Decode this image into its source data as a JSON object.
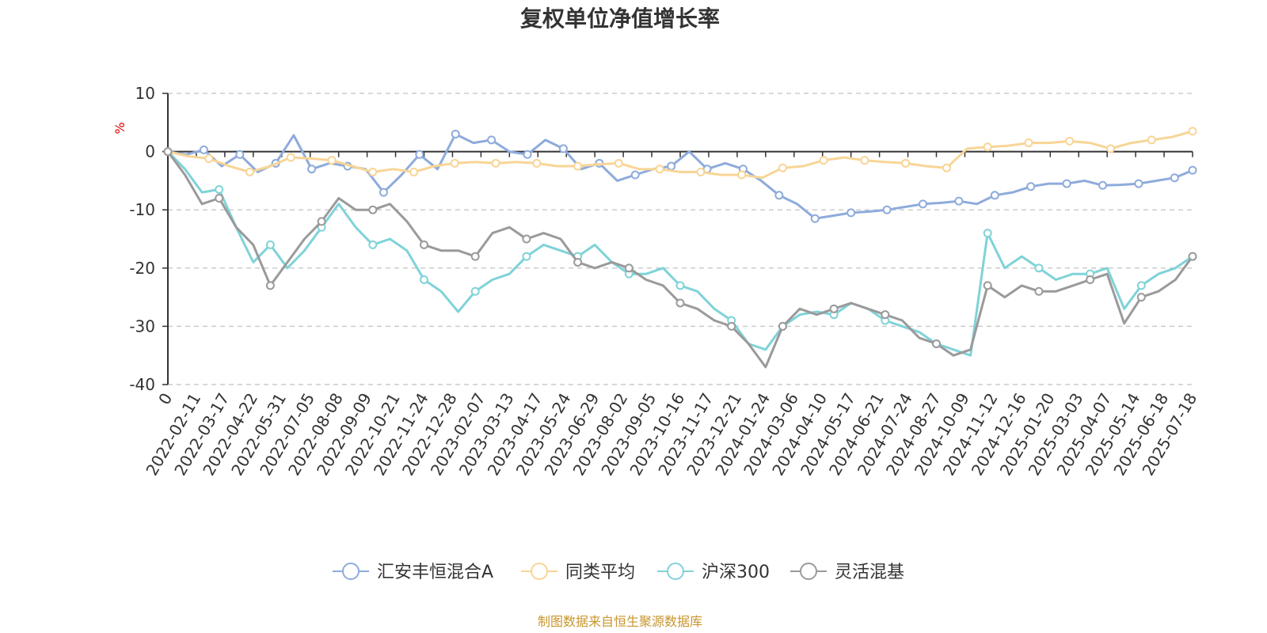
{
  "chart_data": {
    "type": "line",
    "title": "复权单位净值增长率",
    "ylabel": "%",
    "ylim": [
      -40,
      10
    ],
    "yticks": [
      10,
      0,
      -10,
      -20,
      -30,
      -40
    ],
    "grid": true,
    "legend_position": "bottom",
    "x_tick_labels": [
      "0",
      "2022-02-11",
      "2022-03-17",
      "2022-04-22",
      "2022-05-31",
      "2022-07-05",
      "2022-08-08",
      "2022-09-09",
      "2022-10-21",
      "2022-11-24",
      "2022-12-28",
      "2023-02-07",
      "2023-03-13",
      "2023-04-17",
      "2023-05-24",
      "2023-06-29",
      "2023-08-02",
      "2023-09-05",
      "2023-10-16",
      "2023-11-17",
      "2023-12-21",
      "2024-01-24",
      "2024-03-06",
      "2024-04-10",
      "2024-05-17",
      "2024-06-21",
      "2024-07-24",
      "2024-08-27",
      "2024-10-09",
      "2024-11-12",
      "2024-12-16",
      "2025-01-20",
      "2025-03-03",
      "2025-04-07",
      "2025-05-14",
      "2025-06-18",
      "2025-07-18"
    ],
    "series": [
      {
        "name": "汇安丰恒混合A",
        "color": "#8eabdb",
        "values": [
          0,
          -0.5,
          0.3,
          -2.5,
          -0.5,
          -3.5,
          -2,
          2.8,
          -3,
          -2,
          -2.5,
          -3,
          -7,
          -4,
          -0.5,
          -3,
          3,
          1.5,
          2,
          0,
          -0.5,
          2,
          0.5,
          -3,
          -2,
          -5,
          -4,
          -3,
          -2.5,
          0,
          -3,
          -2,
          -3,
          -5,
          -7.5,
          -9,
          -11.5,
          -11,
          -10.5,
          -10.3,
          -10,
          -9.5,
          -9,
          -8.8,
          -8.5,
          -9,
          -7.5,
          -7,
          -6,
          -5.5,
          -5.5,
          -5,
          -5.8,
          -5.7,
          -5.5,
          -5,
          -4.5,
          -3.2
        ]
      },
      {
        "name": "同类平均",
        "color": "#f8d596",
        "values": [
          0,
          -0.8,
          -1.2,
          -2.5,
          -3.5,
          -2.5,
          -1,
          -1.2,
          -1.5,
          -2.5,
          -3.5,
          -3,
          -3.5,
          -2.5,
          -2,
          -1.8,
          -2,
          -1.8,
          -2,
          -2.5,
          -2.5,
          -2.2,
          -2,
          -3,
          -3,
          -3.5,
          -3.5,
          -4,
          -4,
          -4.5,
          -2.8,
          -2.5,
          -1.5,
          -1,
          -1.5,
          -1.8,
          -2,
          -2.5,
          -2.8,
          0.5,
          0.8,
          1,
          1.5,
          1.5,
          1.8,
          1.5,
          0.5,
          1.5,
          2,
          2.5,
          3.5
        ]
      },
      {
        "name": "沪深300",
        "color": "#7fd3d8",
        "values": [
          0,
          -3,
          -7,
          -6.5,
          -13,
          -19,
          -16,
          -20,
          -17,
          -13,
          -9,
          -13,
          -16,
          -15,
          -17,
          -22,
          -24,
          -27.5,
          -24,
          -22,
          -21,
          -18,
          -16,
          -17,
          -18,
          -16,
          -19,
          -21,
          -21,
          -20,
          -23,
          -24,
          -27,
          -29,
          -33,
          -34,
          -30,
          -28,
          -27.5,
          -28,
          -26,
          -27,
          -29,
          -30,
          -31,
          -33,
          -34,
          -35,
          -14,
          -20,
          -18,
          -20,
          -22,
          -21,
          -21,
          -20,
          -27,
          -23,
          -21,
          -20,
          -18
        ]
      },
      {
        "name": "灵活混基",
        "color": "#9a9a9a",
        "values": [
          0,
          -4,
          -9,
          -8,
          -13,
          -16,
          -23,
          -19,
          -15,
          -12,
          -8,
          -10,
          -10,
          -9,
          -12,
          -16,
          -17,
          -17,
          -18,
          -14,
          -13,
          -15,
          -14,
          -15,
          -19,
          -20,
          -19,
          -20,
          -22,
          -23,
          -26,
          -27,
          -29,
          -30,
          -33,
          -37,
          -30,
          -27,
          -28,
          -27,
          -26,
          -27,
          -28,
          -29,
          -32,
          -33,
          -35,
          -34,
          -23,
          -25,
          -23,
          -24,
          -24,
          -23,
          -22,
          -21,
          -29.5,
          -25,
          -24,
          -22,
          -18
        ]
      }
    ]
  },
  "source_text": "制图数据来自恒生聚源数据库"
}
